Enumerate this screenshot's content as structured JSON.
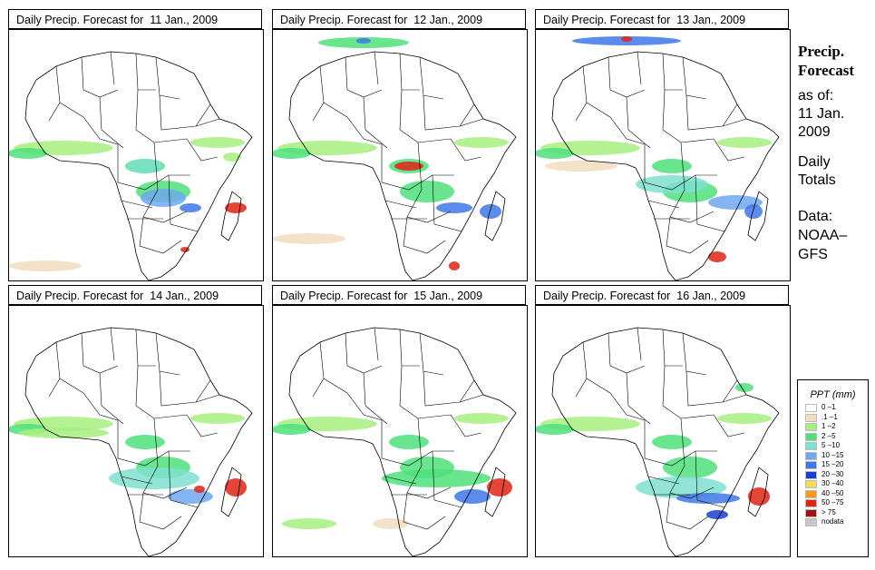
{
  "panels": [
    {
      "title": "Daily Precip. Forecast for  11 Jan., 2009"
    },
    {
      "title": "Daily Precip. Forecast for  12 Jan., 2009"
    },
    {
      "title": "Daily Precip. Forecast for  13 Jan., 2009"
    },
    {
      "title": "Daily Precip. Forecast for  14 Jan., 2009"
    },
    {
      "title": "Daily Precip. Forecast for  15 Jan., 2009"
    },
    {
      "title": "Daily Precip. Forecast for  16 Jan., 2009"
    }
  ],
  "sidebar": {
    "heading1": "Precip.",
    "heading2": "Forecast",
    "as_of": "as of:",
    "date1": "11 Jan.",
    "date2": "2009",
    "daily1": "Daily",
    "daily2": "Totals",
    "data1": "Data:",
    "data2": "NOAA–",
    "data3": "GFS"
  },
  "legend": {
    "title": "PPT (mm)",
    "items": [
      {
        "label": "0 –1",
        "color": "#ffffff"
      },
      {
        "label": ".1 –1",
        "color": "#f2dcc0"
      },
      {
        "label": "1 –2",
        "color": "#a6ee80"
      },
      {
        "label": "2 –5",
        "color": "#4ee07a"
      },
      {
        "label": "5 –10",
        "color": "#7fe0cf"
      },
      {
        "label": "10 –15",
        "color": "#6fa8f0"
      },
      {
        "label": "15 –20",
        "color": "#3f78e8"
      },
      {
        "label": "20 –30",
        "color": "#1a3fd0"
      },
      {
        "label": "30 –40",
        "color": "#f2dc55"
      },
      {
        "label": "40 –50",
        "color": "#f59a18"
      },
      {
        "label": "50 –75",
        "color": "#e02414"
      },
      {
        "label": "> 75",
        "color": "#9e1410"
      },
      {
        "label": "nodata",
        "color": "#c8c8c8"
      }
    ]
  }
}
